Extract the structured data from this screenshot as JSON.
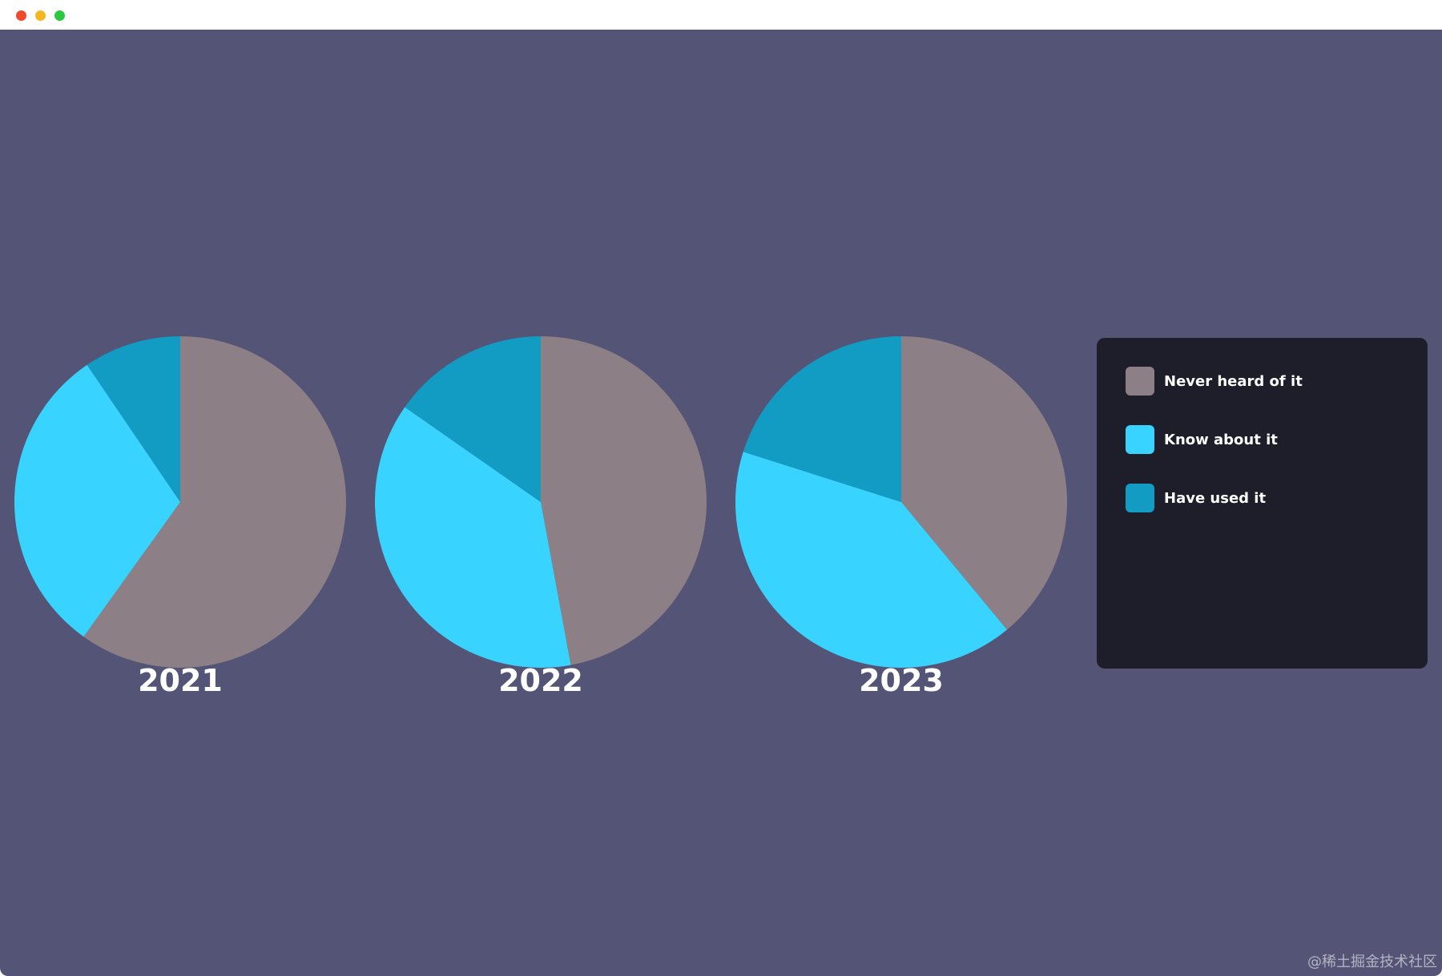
{
  "window": {
    "controls": [
      "close",
      "minimize",
      "zoom"
    ]
  },
  "colors": {
    "background": "#545576",
    "legend_background": "#1e1e2b",
    "never": "#8c7f85",
    "know": "#38d4ff",
    "used": "#129bc3"
  },
  "chart_data": {
    "type": "pie",
    "series_names": [
      "Never heard of it",
      "Know about it",
      "Have used it"
    ],
    "charts": [
      {
        "year": "2021",
        "values": [
          59.9,
          30.6,
          9.5
        ]
      },
      {
        "year": "2022",
        "values": [
          47.1,
          37.6,
          15.3
        ]
      },
      {
        "year": "2023",
        "values": [
          39.0,
          40.9,
          20.1
        ]
      }
    ],
    "legend": [
      {
        "label": "Never heard of it",
        "color": "#8c7f85"
      },
      {
        "label": "Know about it",
        "color": "#38d4ff"
      },
      {
        "label": "Have used it",
        "color": "#129bc3"
      }
    ],
    "legend_position": "right"
  },
  "watermark": "@稀土掘金技术社区"
}
